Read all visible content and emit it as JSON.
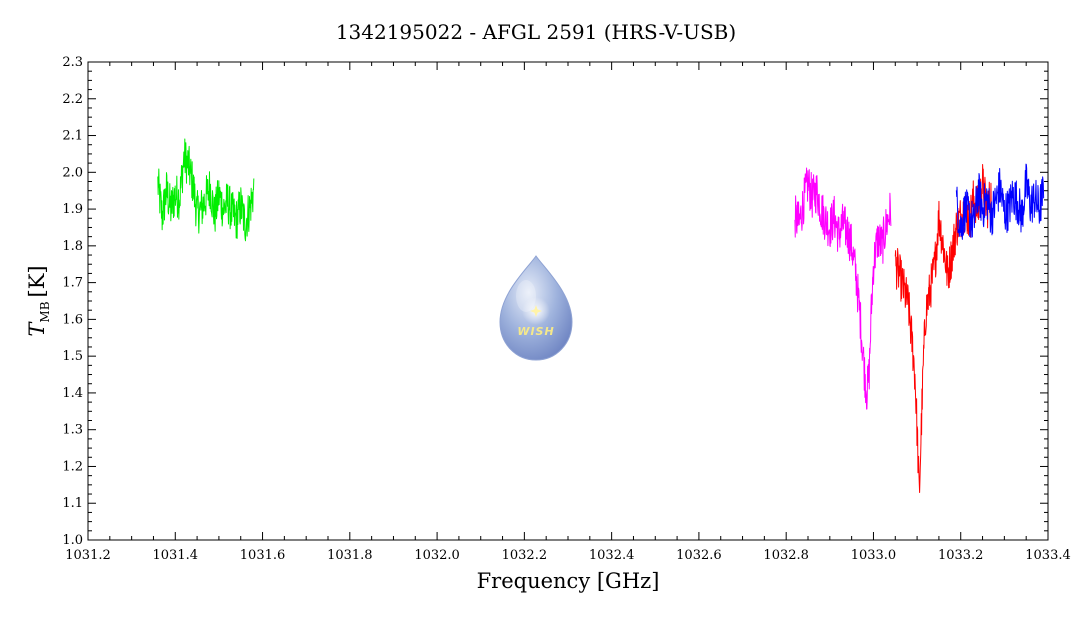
{
  "chart_data": {
    "type": "line",
    "title": "1342195022 - AFGL 2591 (HRS-V-USB)",
    "xlabel": "Frequency [GHz]",
    "ylabel_main": "T",
    "ylabel_sub": "MB",
    "ylabel_unit": "[K]",
    "xlim": [
      1031.2,
      1033.4
    ],
    "ylim": [
      1.0,
      2.3
    ],
    "xticks": [
      "1031.2",
      "1031.4",
      "1031.6",
      "1031.8",
      "1032.0",
      "1032.2",
      "1032.4",
      "1032.6",
      "1032.8",
      "1033.0",
      "1033.2",
      "1033.4"
    ],
    "yticks": [
      "1.0",
      "1.1",
      "1.2",
      "1.3",
      "1.4",
      "1.5",
      "1.6",
      "1.7",
      "1.8",
      "1.9",
      "2.0",
      "2.1",
      "2.2",
      "2.3"
    ],
    "grid": false,
    "series": [
      {
        "color": "#00ee00",
        "x": [
          1031.36,
          1031.37,
          1031.38,
          1031.39,
          1031.4,
          1031.41,
          1031.42,
          1031.43,
          1031.44,
          1031.45,
          1031.46,
          1031.47,
          1031.48,
          1031.49,
          1031.5,
          1031.51,
          1031.52,
          1031.53,
          1031.54,
          1031.55,
          1031.56,
          1031.57,
          1031.58
        ],
        "values": [
          1.97,
          1.88,
          1.95,
          1.9,
          1.94,
          1.93,
          2.04,
          2.02,
          1.97,
          1.89,
          1.9,
          1.93,
          1.96,
          1.88,
          1.94,
          1.9,
          1.92,
          1.89,
          1.87,
          1.91,
          1.86,
          1.9,
          1.95
        ]
      },
      {
        "color": "#ff00ff",
        "x": [
          1032.82,
          1032.83,
          1032.84,
          1032.85,
          1032.86,
          1032.87,
          1032.88,
          1032.89,
          1032.9,
          1032.91,
          1032.92,
          1032.93,
          1032.94,
          1032.95,
          1032.96,
          1032.97,
          1032.98,
          1032.985,
          1032.99,
          1032.995,
          1033.0,
          1033.01,
          1033.02,
          1033.03,
          1033.04
        ],
        "values": [
          1.88,
          1.86,
          1.92,
          1.97,
          1.93,
          1.95,
          1.9,
          1.87,
          1.85,
          1.88,
          1.83,
          1.86,
          1.84,
          1.8,
          1.72,
          1.6,
          1.45,
          1.4,
          1.45,
          1.62,
          1.75,
          1.82,
          1.8,
          1.86,
          1.9
        ]
      },
      {
        "color": "#ff0000",
        "x": [
          1033.05,
          1033.06,
          1033.07,
          1033.08,
          1033.09,
          1033.095,
          1033.1,
          1033.105,
          1033.11,
          1033.115,
          1033.12,
          1033.13,
          1033.14,
          1033.15,
          1033.16,
          1033.17,
          1033.18,
          1033.19,
          1033.2,
          1033.21,
          1033.22,
          1033.23,
          1033.24,
          1033.25,
          1033.26,
          1033.27
        ],
        "values": [
          1.75,
          1.72,
          1.68,
          1.64,
          1.52,
          1.45,
          1.3,
          1.12,
          1.32,
          1.5,
          1.62,
          1.68,
          1.74,
          1.88,
          1.8,
          1.72,
          1.78,
          1.85,
          1.88,
          1.9,
          1.87,
          1.93,
          1.9,
          1.97,
          1.9,
          1.94
        ]
      },
      {
        "color": "#0000ff",
        "x": [
          1033.19,
          1033.2,
          1033.21,
          1033.22,
          1033.23,
          1033.24,
          1033.25,
          1033.26,
          1033.27,
          1033.28,
          1033.29,
          1033.3,
          1033.31,
          1033.32,
          1033.33,
          1033.34,
          1033.35,
          1033.36,
          1033.37,
          1033.38,
          1033.39
        ],
        "values": [
          1.92,
          1.85,
          1.9,
          1.88,
          1.86,
          1.95,
          1.9,
          1.93,
          1.88,
          1.92,
          1.96,
          1.89,
          1.9,
          1.94,
          1.92,
          1.88,
          1.97,
          1.91,
          1.93,
          1.9,
          1.95
        ]
      }
    ],
    "annotations": [
      {
        "type": "logo",
        "text": "WISH"
      }
    ]
  }
}
